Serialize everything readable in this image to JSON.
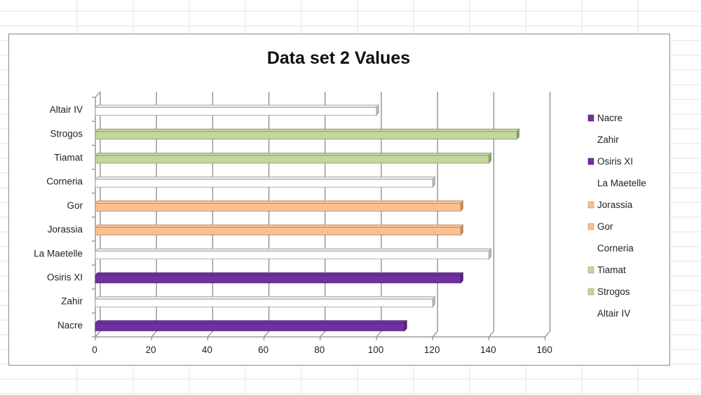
{
  "chart_data": {
    "type": "bar",
    "orientation": "horizontal",
    "title": "Data set 2  Values",
    "xlabel": "",
    "ylabel": "",
    "xlim": [
      0,
      160
    ],
    "x_ticks": [
      0,
      20,
      40,
      60,
      80,
      100,
      120,
      140,
      160
    ],
    "grid": true,
    "legend_position": "right",
    "categories": [
      "Nacre",
      "Zahir",
      "Osiris XI",
      "La Maetelle",
      "Jorassia",
      "Gor",
      "Corneria",
      "Tiamat",
      "Strogos",
      "Altair IV"
    ],
    "values": [
      110,
      120,
      130,
      140,
      130,
      130,
      120,
      140,
      150,
      100
    ],
    "colors": [
      "#7030a0",
      "#ffffff",
      "#7030a0",
      "#ffffff",
      "#fac090",
      "#fac090",
      "#ffffff",
      "#c3d69b",
      "#c3d69b",
      "#ffffff"
    ],
    "legend": [
      {
        "label": "Nacre",
        "color": "#7030a0"
      },
      {
        "label": "Zahir",
        "color": "#ffffff"
      },
      {
        "label": "Osiris XI",
        "color": "#7030a0"
      },
      {
        "label": "La Maetelle",
        "color": "#ffffff"
      },
      {
        "label": "Jorassia",
        "color": "#fac090"
      },
      {
        "label": "Gor",
        "color": "#fac090"
      },
      {
        "label": "Corneria",
        "color": "#ffffff"
      },
      {
        "label": "Tiamat",
        "color": "#c3d69b"
      },
      {
        "label": "Strogos",
        "color": "#c3d69b"
      },
      {
        "label": "Altair IV",
        "color": "#ffffff"
      }
    ]
  }
}
